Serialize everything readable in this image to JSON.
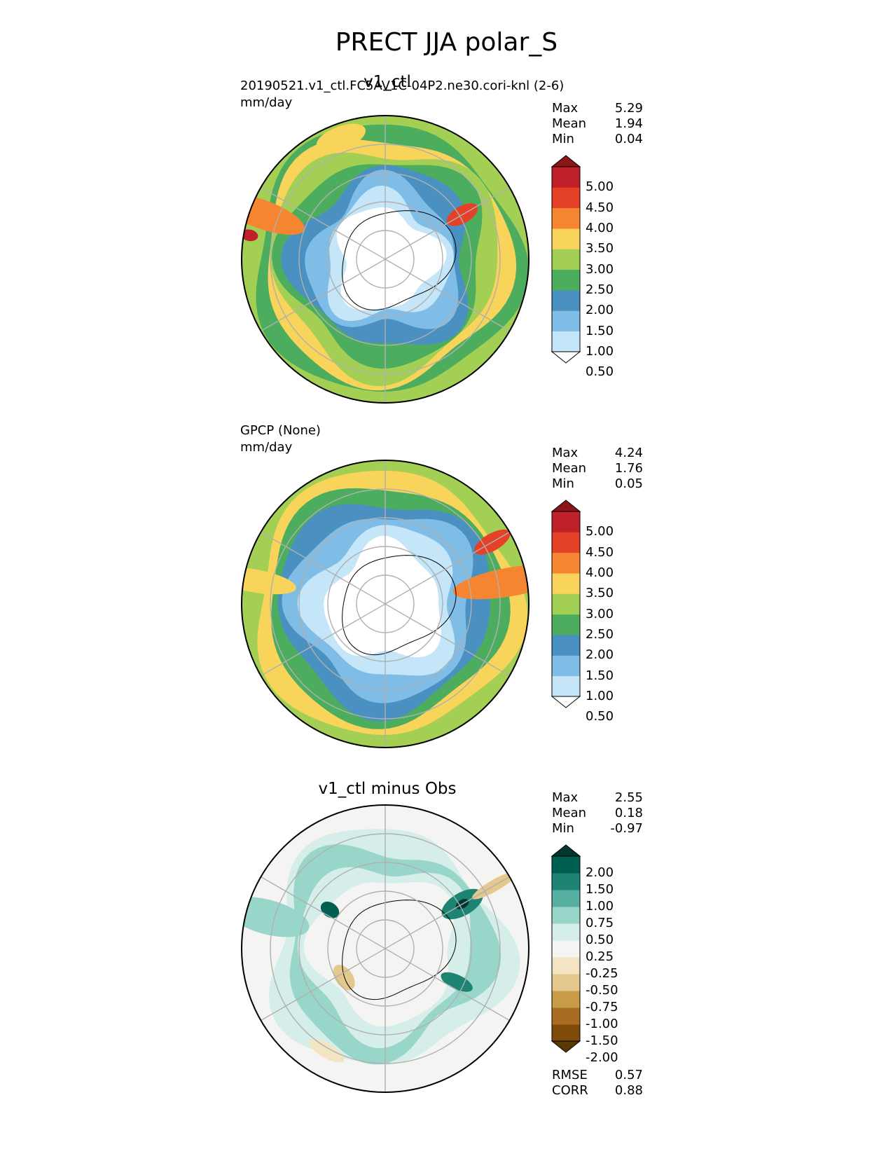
{
  "figure": {
    "title": "PRECT JJA polar_S"
  },
  "colors": {
    "precip_levels": [
      "#ffffff",
      "#c4e6f8",
      "#7fbde6",
      "#4a91c2",
      "#4cad5e",
      "#a3cf55",
      "#f8d45a",
      "#f68532",
      "#e54128",
      "#c0202a",
      "#8c1519"
    ],
    "diff_levels": [
      "#5a3806",
      "#7f4b0a",
      "#a86d20",
      "#c99c48",
      "#e4c88e",
      "#f3e5c3",
      "#f4f4f2",
      "#d6eee9",
      "#99d6ca",
      "#57afa2",
      "#1d8474",
      "#005f52",
      "#00382f"
    ],
    "graticule": "#b0b0b0",
    "coast": "#000000"
  },
  "panels": [
    {
      "title": "v1_ctl",
      "test_name": "20190521.v1_ctl.FC5AV1C-04P2.ne30.cori-knl (2-6)",
      "units": "mm/day",
      "stats": [
        {
          "k": "Max",
          "v": "5.29"
        },
        {
          "k": "Mean",
          "v": "1.94"
        },
        {
          "k": "Min",
          "v": "0.04"
        }
      ],
      "ticks": [
        "5.00",
        "4.50",
        "4.00",
        "3.50",
        "3.00",
        "2.50",
        "2.00",
        "1.50",
        "1.00",
        "0.50"
      ],
      "map_rings": [
        {
          "level": 5,
          "r": 1.0,
          "amp": 0.0
        },
        {
          "level": 4,
          "r": 0.93,
          "amp": 0.05
        },
        {
          "level": 6,
          "r": 0.86,
          "amp": 0.05
        },
        {
          "level": 5,
          "r": 0.79,
          "amp": 0.06
        },
        {
          "level": 4,
          "r": 0.71,
          "amp": 0.06
        },
        {
          "level": 3,
          "r": 0.62,
          "amp": 0.07
        },
        {
          "level": 2,
          "r": 0.52,
          "amp": 0.07
        },
        {
          "level": 1,
          "r": 0.43,
          "amp": 0.06
        },
        {
          "level": 0,
          "r": 0.35,
          "amp": 0.05
        }
      ],
      "blobs": [
        {
          "level": 7,
          "a": 200,
          "d": 0.92,
          "rx": 0.1,
          "ry": 0.32
        },
        {
          "level": 9,
          "a": 190,
          "d": 0.96,
          "rx": 0.04,
          "ry": 0.06
        },
        {
          "level": 8,
          "a": 330,
          "d": 0.62,
          "rx": 0.06,
          "ry": 0.12
        },
        {
          "level": 6,
          "a": 250,
          "d": 0.9,
          "rx": 0.18,
          "ry": 0.08
        }
      ]
    },
    {
      "title": "",
      "test_name": "GPCP (None)",
      "units": "mm/day",
      "stats": [
        {
          "k": "Max",
          "v": "4.24"
        },
        {
          "k": "Mean",
          "v": "1.76"
        },
        {
          "k": "Min",
          "v": "0.05"
        }
      ],
      "ticks": [
        "5.00",
        "4.50",
        "4.00",
        "3.50",
        "3.00",
        "2.50",
        "2.00",
        "1.50",
        "1.00",
        "0.50"
      ],
      "map_rings": [
        {
          "level": 5,
          "r": 1.0,
          "amp": 0.0
        },
        {
          "level": 6,
          "r": 0.92,
          "amp": 0.05
        },
        {
          "level": 4,
          "r": 0.83,
          "amp": 0.04
        },
        {
          "level": 3,
          "r": 0.74,
          "amp": 0.05
        },
        {
          "level": 2,
          "r": 0.64,
          "amp": 0.06
        },
        {
          "level": 1,
          "r": 0.52,
          "amp": 0.06
        },
        {
          "level": 0,
          "r": 0.4,
          "amp": 0.05
        }
      ],
      "blobs": [
        {
          "level": 7,
          "a": 350,
          "d": 0.88,
          "rx": 0.1,
          "ry": 0.4
        },
        {
          "level": 8,
          "a": 330,
          "d": 0.86,
          "rx": 0.06,
          "ry": 0.14
        },
        {
          "level": 6,
          "a": 190,
          "d": 0.93,
          "rx": 0.08,
          "ry": 0.3
        }
      ]
    },
    {
      "title": "v1_ctl minus Obs",
      "test_name": "",
      "units": "",
      "stats": [
        {
          "k": "Max",
          "v": "2.55"
        },
        {
          "k": "Mean",
          "v": "0.18"
        },
        {
          "k": "Min",
          "v": "-0.97"
        }
      ],
      "ticks": [
        "2.00",
        "1.50",
        "1.00",
        "0.75",
        "0.50",
        "0.25",
        "-0.25",
        "-0.50",
        "-0.75",
        "-1.00",
        "-1.50",
        "-2.00"
      ],
      "bottom_stats": [
        {
          "k": "RMSE",
          "v": "0.57"
        },
        {
          "k": "CORR",
          "v": "0.88"
        }
      ],
      "map_rings": [
        {
          "level": 6,
          "r": 1.0,
          "amp": 0.0
        },
        {
          "level": 7,
          "r": 0.82,
          "amp": 0.08
        },
        {
          "level": 8,
          "r": 0.72,
          "amp": 0.08
        },
        {
          "level": 7,
          "r": 0.6,
          "amp": 0.06
        },
        {
          "level": 6,
          "r": 0.5,
          "amp": 0.05
        }
      ],
      "blobs": [
        {
          "level": 8,
          "a": 195,
          "d": 0.85,
          "rx": 0.12,
          "ry": 0.3
        },
        {
          "level": 10,
          "a": 330,
          "d": 0.62,
          "rx": 0.08,
          "ry": 0.16
        },
        {
          "level": 12,
          "a": 330,
          "d": 0.62,
          "rx": 0.03,
          "ry": 0.05
        },
        {
          "level": 10,
          "a": 25,
          "d": 0.55,
          "rx": 0.05,
          "ry": 0.12
        },
        {
          "level": 11,
          "a": 215,
          "d": 0.47,
          "rx": 0.05,
          "ry": 0.07
        },
        {
          "level": 4,
          "a": 145,
          "d": 0.35,
          "rx": 0.1,
          "ry": 0.06
        },
        {
          "level": 4,
          "a": 330,
          "d": 0.88,
          "rx": 0.04,
          "ry": 0.18
        },
        {
          "level": 5,
          "a": 120,
          "d": 0.82,
          "rx": 0.14,
          "ry": 0.05
        }
      ]
    }
  ]
}
